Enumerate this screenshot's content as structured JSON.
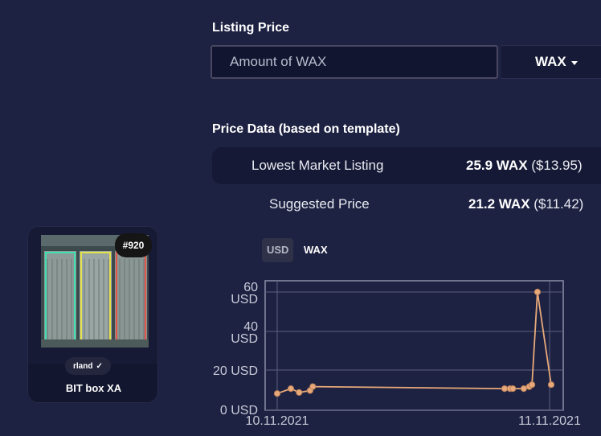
{
  "listing": {
    "title": "Listing Price",
    "placeholder": "Amount of WAX",
    "currency": "WAX"
  },
  "price_data": {
    "title": "Price Data (based on template)",
    "lowest_label": "Lowest Market Listing",
    "lowest_value_bold": "25.9 WAX",
    "lowest_value_usd": "($13.95)",
    "suggested_label": "Suggested Price",
    "suggested_value_bold": "21.2 WAX",
    "suggested_value_usd": "($11.42)"
  },
  "chart_toggle": {
    "usd_label": "USD",
    "wax_label": "WAX",
    "active": "WAX"
  },
  "card": {
    "mint": "#920",
    "collection": "rland",
    "name": "BIT box XA",
    "image_icon": "bit-box-image"
  },
  "chart_data": {
    "type": "line",
    "series_color": "#e8a97a",
    "ylim": [
      0,
      60
    ],
    "y_ticks": [
      "0 USD",
      "20 USD",
      "40\nUSD",
      "60\nUSD"
    ],
    "x_ticks": [
      "10.11.2021",
      "11.11.2021"
    ],
    "grid": true,
    "points": [
      {
        "x": 0.0,
        "y": 8.5
      },
      {
        "x": 0.05,
        "y": 11
      },
      {
        "x": 0.08,
        "y": 9
      },
      {
        "x": 0.12,
        "y": 10
      },
      {
        "x": 0.13,
        "y": 12
      },
      {
        "x": 0.83,
        "y": 11
      },
      {
        "x": 0.85,
        "y": 11
      },
      {
        "x": 0.86,
        "y": 11
      },
      {
        "x": 0.9,
        "y": 11
      },
      {
        "x": 0.92,
        "y": 12
      },
      {
        "x": 0.93,
        "y": 13
      },
      {
        "x": 0.95,
        "y": 60
      },
      {
        "x": 1.0,
        "y": 13
      }
    ]
  }
}
